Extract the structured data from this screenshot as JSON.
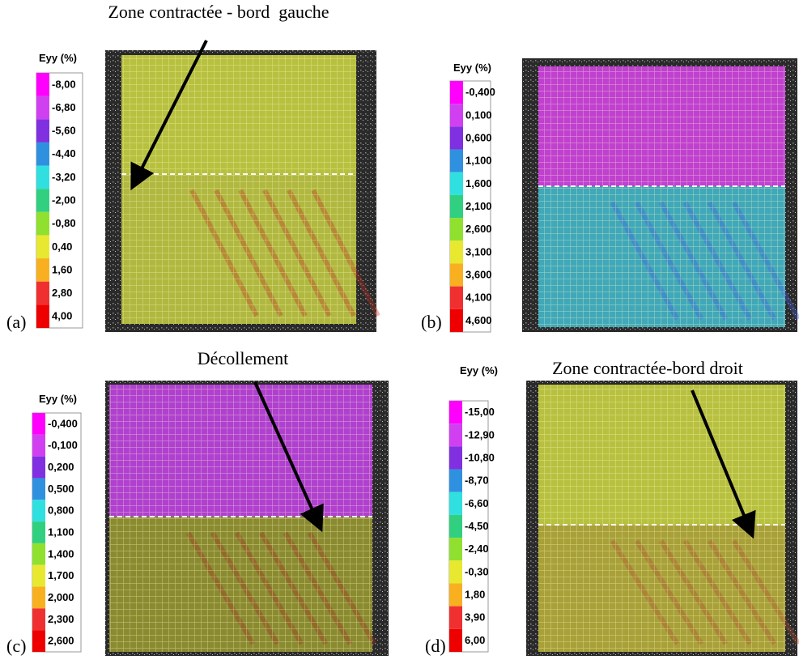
{
  "panels": [
    {
      "label": "(a)",
      "annotation": "Zone contractée - bord  gauche",
      "colorbar": {
        "title": "Eyy (%)",
        "ticks": [
          "-8,00",
          "-6,80",
          "-5,60",
          "-4,40",
          "-3,20",
          "-2,00",
          "-0,80",
          "0,40",
          "1,60",
          "2,80",
          "4,00"
        ]
      }
    },
    {
      "label": "(b)",
      "colorbar": {
        "title": "Eyy (%)",
        "ticks": [
          "-0,400",
          "0,100",
          "0,600",
          "1,100",
          "1,600",
          "2,100",
          "2,600",
          "3,100",
          "3,600",
          "4,100",
          "4,600"
        ]
      }
    },
    {
      "label": "(c)",
      "annotation": "Décollement",
      "colorbar": {
        "title": "Eyy (%)",
        "ticks": [
          "-0,400",
          "-0,100",
          "0,200",
          "0,500",
          "0,800",
          "1,100",
          "1,400",
          "1,700",
          "2,000",
          "2,300",
          "2,600"
        ]
      }
    },
    {
      "label": "(d)",
      "annotation": "Zone contractée-bord droit",
      "colorbar": {
        "title": "Eyy (%)",
        "ticks": [
          "-15,00",
          "-12,90",
          "-10,80",
          "-8,70",
          "-6,60",
          "-4,50",
          "-2,40",
          "-0,30",
          "1,80",
          "3,90",
          "6,00"
        ]
      }
    }
  ]
}
